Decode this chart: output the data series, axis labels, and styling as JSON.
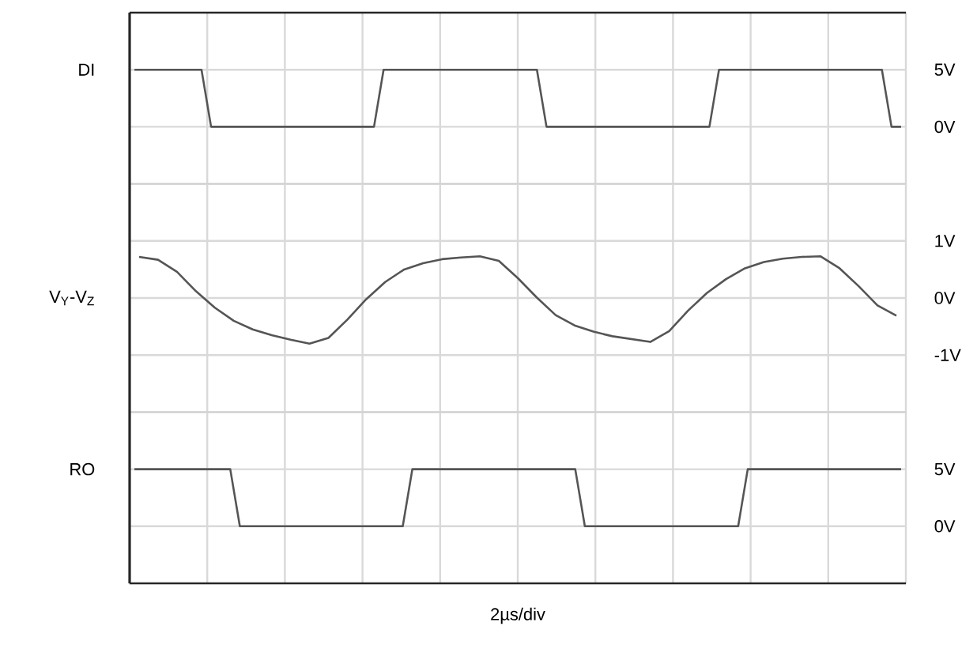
{
  "chart_data": [
    {
      "type": "line",
      "ylabel": "DI",
      "color": "#555555",
      "grid": true,
      "tick_labels": "y",
      "categories": [
        null,
        null,
        null,
        null,
        null,
        null,
        null,
        null,
        null,
        null,
        null,
        null,
        null,
        null,
        null,
        null,
        null,
        null,
        null,
        null,
        null,
        null,
        null,
        null,
        null,
        null,
        null,
        null,
        null,
        null,
        null,
        null,
        null,
        null,
        null,
        null,
        null,
        null,
        null,
        null,
        null,
        null,
        null,
        null,
        null,
        null,
        null,
        null,
        null,
        null,
        null,
        null,
        null,
        null,
        null,
        null,
        null,
        null,
        null,
        null,
        null,
        null,
        null,
        null,
        null,
        null,
        null,
        null,
        null,
        null,
        null,
        null,
        null,
        null,
        null,
        null,
        null,
        null,
        null,
        null,
        null
      ],
      "ylim": [
        -5,
        10
      ],
      "yticks": [
        {
          "value": 0,
          "label": "0V"
        },
        {
          "value": 5,
          "label": "5V"
        }
      ],
      "values": [
        5,
        5,
        5,
        5,
        5,
        5,
        5,
        5,
        0,
        0,
        0,
        0,
        0,
        0,
        0,
        0,
        0,
        0,
        0,
        0,
        0,
        0,
        0,
        0,
        0,
        0,
        5,
        5,
        5,
        5,
        5,
        5,
        5,
        5,
        5,
        5,
        5,
        5,
        5,
        5,
        5,
        5,
        5,
        0,
        0,
        0,
        0,
        0,
        0,
        0,
        0,
        0,
        0,
        0,
        0,
        0,
        0,
        0,
        0,
        0,
        0,
        5,
        5,
        5,
        5,
        5,
        5,
        5,
        5,
        5,
        5,
        5,
        5,
        5,
        5,
        5,
        5,
        5,
        5,
        0,
        0
      ]
    },
    {
      "type": "line",
      "ylabel": "V$_{Y}$-V$_{Z}$",
      "color": "#555555",
      "grid": true,
      "tick_labels": "y",
      "categories": [
        null,
        null,
        null,
        null,
        null,
        null,
        null,
        null,
        null,
        null,
        null,
        null,
        null,
        null,
        null,
        null,
        null,
        null,
        null,
        null,
        null,
        null,
        null,
        null,
        null,
        null,
        null,
        null,
        null,
        null,
        null,
        null,
        null,
        null,
        null,
        null,
        null,
        null,
        null,
        null,
        null
      ],
      "ylim": [
        -2,
        2
      ],
      "yticks": [
        {
          "value": -1,
          "label": "-1V"
        },
        {
          "value": 0,
          "label": "0V"
        },
        {
          "value": 1,
          "label": "1V"
        }
      ],
      "values": [
        0.72,
        0.67,
        0.46,
        0.12,
        -0.17,
        -0.4,
        -0.55,
        -0.65,
        -0.73,
        -0.8,
        -0.7,
        -0.38,
        -0.02,
        0.28,
        0.5,
        0.61,
        0.68,
        0.71,
        0.73,
        0.65,
        0.35,
        0.01,
        -0.3,
        -0.48,
        -0.59,
        -0.67,
        -0.72,
        -0.77,
        -0.58,
        -0.22,
        0.09,
        0.33,
        0.52,
        0.63,
        0.69,
        0.72,
        0.73,
        0.52,
        0.21,
        -0.13,
        -0.31
      ]
    },
    {
      "type": "line",
      "ylabel": "RO",
      "xlabel": "2µs/div",
      "color": "#555555",
      "grid": true,
      "tick_labels": "y",
      "categories": [
        null,
        null,
        null,
        null,
        null,
        null,
        null,
        null,
        null,
        null,
        null,
        null,
        null,
        null,
        null,
        null,
        null,
        null,
        null,
        null,
        null,
        null,
        null,
        null,
        null,
        null,
        null,
        null,
        null,
        null,
        null,
        null,
        null,
        null,
        null,
        null,
        null,
        null,
        null,
        null,
        null,
        null,
        null,
        null,
        null,
        null,
        null,
        null,
        null,
        null,
        null,
        null,
        null,
        null,
        null,
        null,
        null,
        null,
        null,
        null,
        null,
        null,
        null,
        null,
        null,
        null,
        null,
        null,
        null,
        null,
        null,
        null,
        null,
        null,
        null,
        null,
        null,
        null,
        null,
        null,
        null
      ],
      "ylim": [
        -5,
        10
      ],
      "yticks": [
        {
          "value": 0,
          "label": "0V"
        },
        {
          "value": 5,
          "label": "5V"
        }
      ],
      "values": [
        5,
        5,
        5,
        5,
        5,
        5,
        5,
        5,
        5,
        5,
        5,
        0,
        0,
        0,
        0,
        0,
        0,
        0,
        0,
        0,
        0,
        0,
        0,
        0,
        0,
        0,
        0,
        0,
        0,
        5,
        5,
        5,
        5,
        5,
        5,
        5,
        5,
        5,
        5,
        5,
        5,
        5,
        5,
        5,
        5,
        5,
        5,
        0,
        0,
        0,
        0,
        0,
        0,
        0,
        0,
        0,
        0,
        0,
        0,
        0,
        0,
        0,
        0,
        0,
        5,
        5,
        5,
        5,
        5,
        5,
        5,
        5,
        5,
        5,
        5,
        5,
        5,
        5,
        5,
        5,
        5
      ]
    }
  ]
}
